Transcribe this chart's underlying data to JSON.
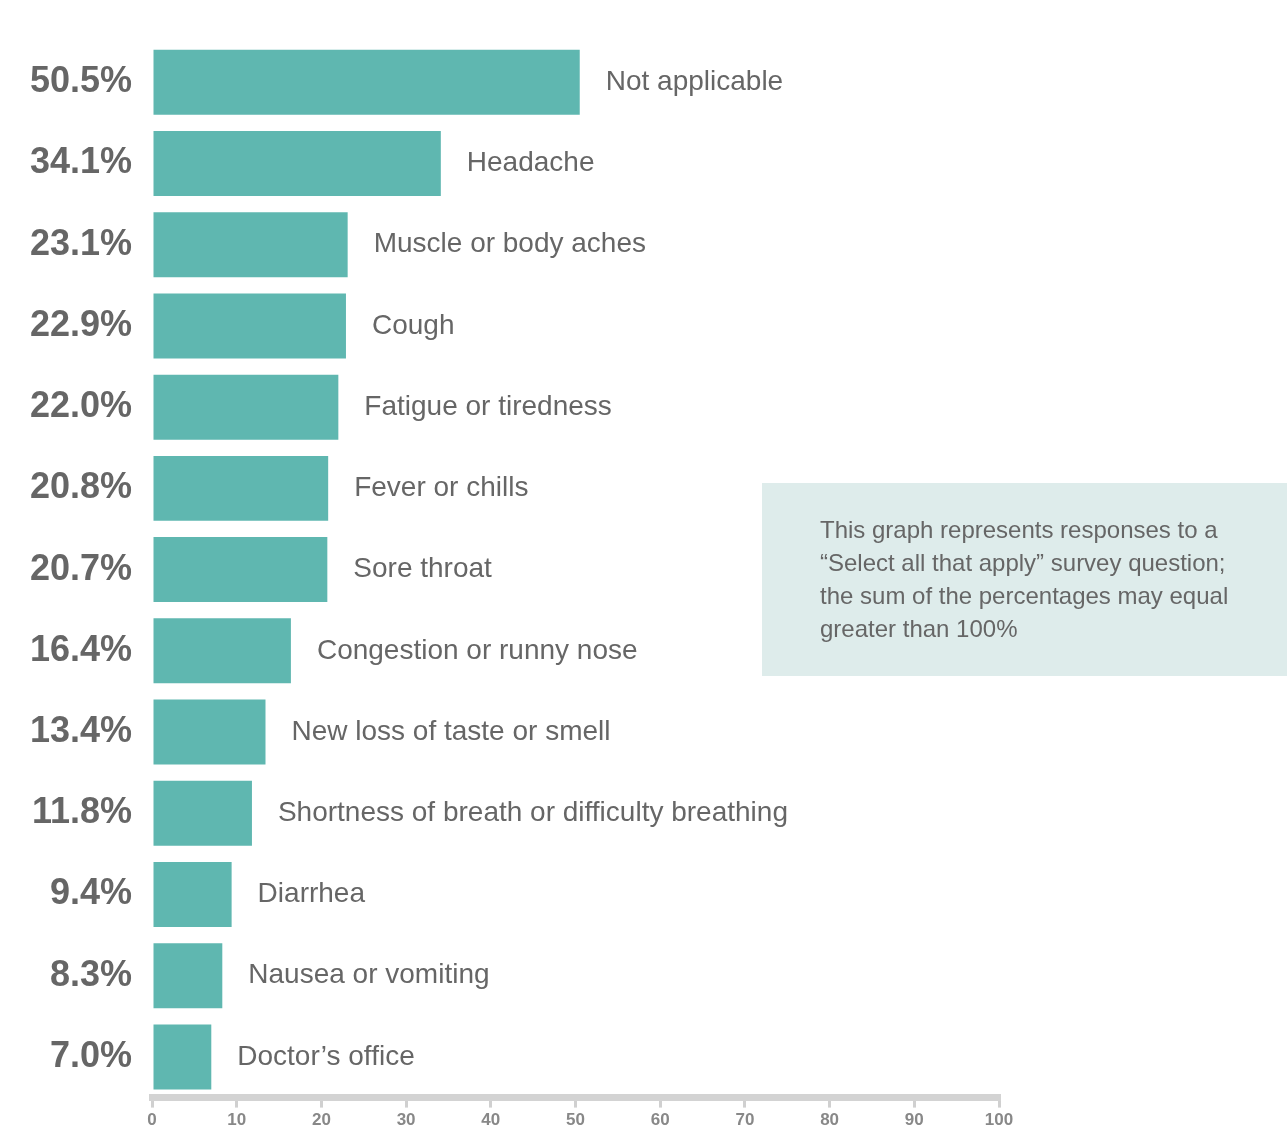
{
  "chart_data": {
    "type": "bar",
    "orientation": "horizontal",
    "categories": [
      "Not applicable",
      "Headache",
      "Muscle or body aches",
      "Cough",
      "Fatigue or tiredness",
      "Fever or chills",
      "Sore throat",
      "Congestion or runny nose",
      "New loss of taste or smell",
      "Shortness of breath or difficulty breathing",
      "Diarrhea",
      "Nausea or vomiting",
      "Doctor’s office"
    ],
    "values": [
      50.5,
      34.1,
      23.1,
      22.9,
      22.0,
      20.8,
      20.7,
      16.4,
      13.4,
      11.8,
      9.4,
      8.3,
      7.0
    ],
    "value_labels": [
      "50.5%",
      "34.1%",
      "23.1%",
      "22.9%",
      "22.0%",
      "20.8%",
      "20.7%",
      "16.4%",
      "13.4%",
      "11.8%",
      "9.4%",
      "8.3%",
      "7.0%"
    ],
    "color": "#5fb7b0",
    "xlim": [
      0,
      100
    ],
    "xticks": [
      0,
      10,
      20,
      30,
      40,
      50,
      60,
      70,
      80,
      90,
      100
    ],
    "grid": false,
    "legend": false,
    "annotations": [
      "This graph represents responses to a “Select all that apply” survey question; the sum of the percentages may equal greater than 100%"
    ]
  }
}
